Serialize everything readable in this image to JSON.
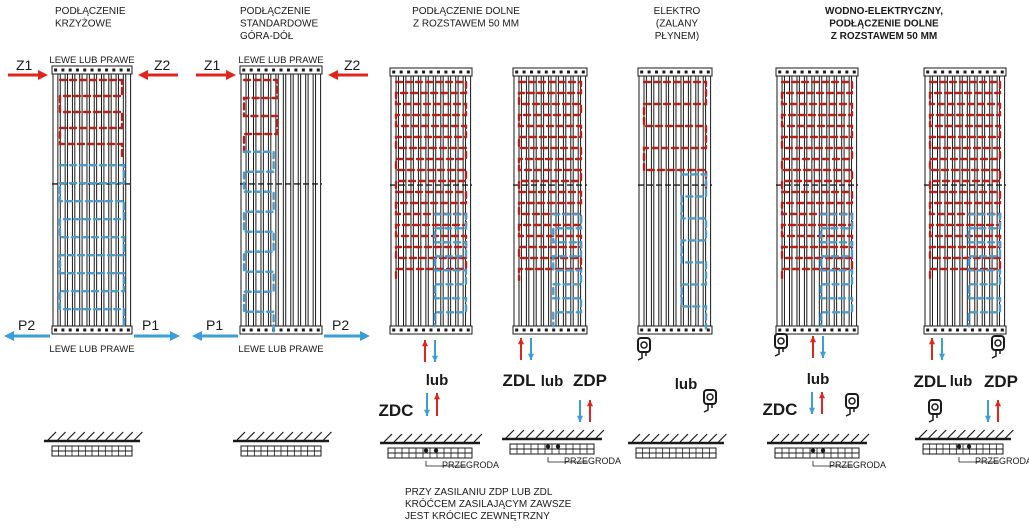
{
  "colors": {
    "supply": "#e0261c",
    "return": "#3b9ed9",
    "outline": "#1a1a1a",
    "hot_flow": "#b3221a",
    "cold_flow": "#4a9ccc"
  },
  "columns": [
    {
      "id": "cross",
      "title": [
        "PODŁĄCZENIE",
        "KRZYŻOWE"
      ],
      "title_bold": false,
      "top_label": "LEWE LUB PRAWE",
      "bottom_label": "LEWE LUB PRAWE",
      "supply_left": "Z1",
      "supply_right": "Z2",
      "return_left": "P2",
      "return_right": "P1",
      "fill": "split"
    },
    {
      "id": "standard",
      "title": [
        "PODŁĄCZENIE",
        "STANDARDOWE",
        "GÓRA-DÓŁ"
      ],
      "title_bold": false,
      "top_label": "LEWE LUB PRAWE",
      "bottom_label": "LEWE LUB PRAWE",
      "supply_left": "Z1",
      "supply_right": "Z2",
      "return_left": "P1",
      "return_right": "P2",
      "fill": "side"
    },
    {
      "id": "bottom50",
      "title": [
        "PODŁĄCZENIE DOLNE",
        "Z ROZSTAWEM  50 MM"
      ],
      "title_bold": false,
      "connector_word": "lub",
      "code_left": "ZDC",
      "fill": "dense",
      "plan_label": "PRZEGRODA"
    },
    {
      "id": "bottom50b",
      "title": [],
      "title_bold": false,
      "connector_word": "lub",
      "code_left": "ZDL",
      "code_right": "ZDP",
      "fill": "dense",
      "plan_label": "PRZEGRODA"
    },
    {
      "id": "electro",
      "title": [
        "ELEKTRO",
        "(ZALANY",
        "PŁYNEM)"
      ],
      "title_bold": false,
      "connector_word": "lub",
      "fill": "hot"
    },
    {
      "id": "hybrid",
      "title": [
        "WODNO-ELEKTRYCZNY,",
        "PODŁĄCZENIE DOLNE",
        "Z ROZSTAWEM 50 MM"
      ],
      "title_bold": true,
      "connector_word": "lub",
      "code_left": "ZDC",
      "fill": "dense",
      "plan_label": "PRZEGRODA"
    },
    {
      "id": "hybrid2",
      "title": [],
      "title_bold": false,
      "connector_word": "lub",
      "code_left": "ZDL",
      "code_right": "ZDP",
      "fill": "dense",
      "plan_label": "PRZEGRODA"
    }
  ],
  "footnote": [
    "PRZY ZASILANIU ZDP LUB ZDL",
    "KRÓĆCEM ZASILAJĄCYM ZAWSZE",
    "JEST KRÓCIEC ZEWNĘTRZNY"
  ]
}
